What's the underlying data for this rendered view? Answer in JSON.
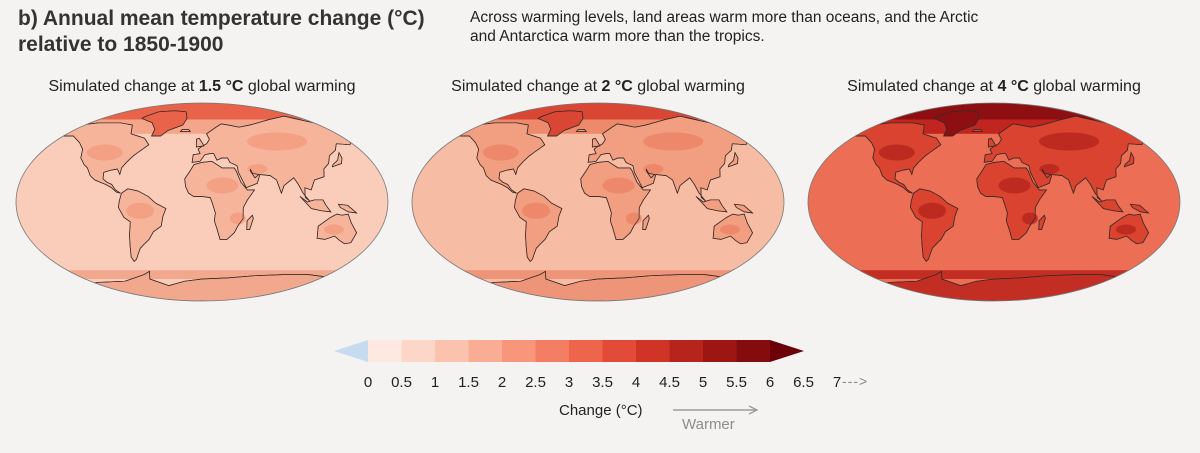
{
  "header": {
    "title_line1": "b) Annual mean temperature change (°C)",
    "title_line2": "relative to 1850-1900",
    "desc_line1": "Across warming levels, land areas warm more than oceans, and the Arctic",
    "desc_line2": "and Antarctica warm more than the tropics."
  },
  "panels": [
    {
      "prefix": "Simulated change at ",
      "level": "1.5 °C",
      "suffix": " global warming"
    },
    {
      "prefix": "Simulated change at ",
      "level": "2 °C",
      "suffix": " global warming"
    },
    {
      "prefix": "Simulated change at ",
      "level": "4 °C",
      "suffix": " global warming"
    }
  ],
  "legend": {
    "ticks": [
      "0",
      "0.5",
      "1",
      "1.5",
      "2",
      "2.5",
      "3",
      "3.5",
      "4",
      "4.5",
      "5",
      "5.5",
      "6",
      "6.5",
      "7"
    ],
    "more_arrow": "--->",
    "label": "Change (°C)",
    "direction_label": "Warmer",
    "colors": [
      "#fde9e0",
      "#fcd6c6",
      "#fbc3ae",
      "#f9ad94",
      "#f7967b",
      "#f37e63",
      "#ee654c",
      "#e24b37",
      "#cf3427",
      "#b7241c",
      "#9e1614",
      "#840c0f"
    ],
    "below_color": "#c6dbef",
    "above_color": "#6b0008"
  },
  "colors": {
    "ocean_15": "#f9cdb9",
    "land_15": "#f6b59b",
    "arctic_15": "#e9634a",
    "ocean_2": "#f7bca4",
    "land_2": "#f29e80",
    "arctic_2": "#da4634",
    "ocean_4": "#ec6e55",
    "land_4": "#d9432f",
    "arctic_4": "#8d0f12",
    "coast": "#3a2a26"
  }
}
